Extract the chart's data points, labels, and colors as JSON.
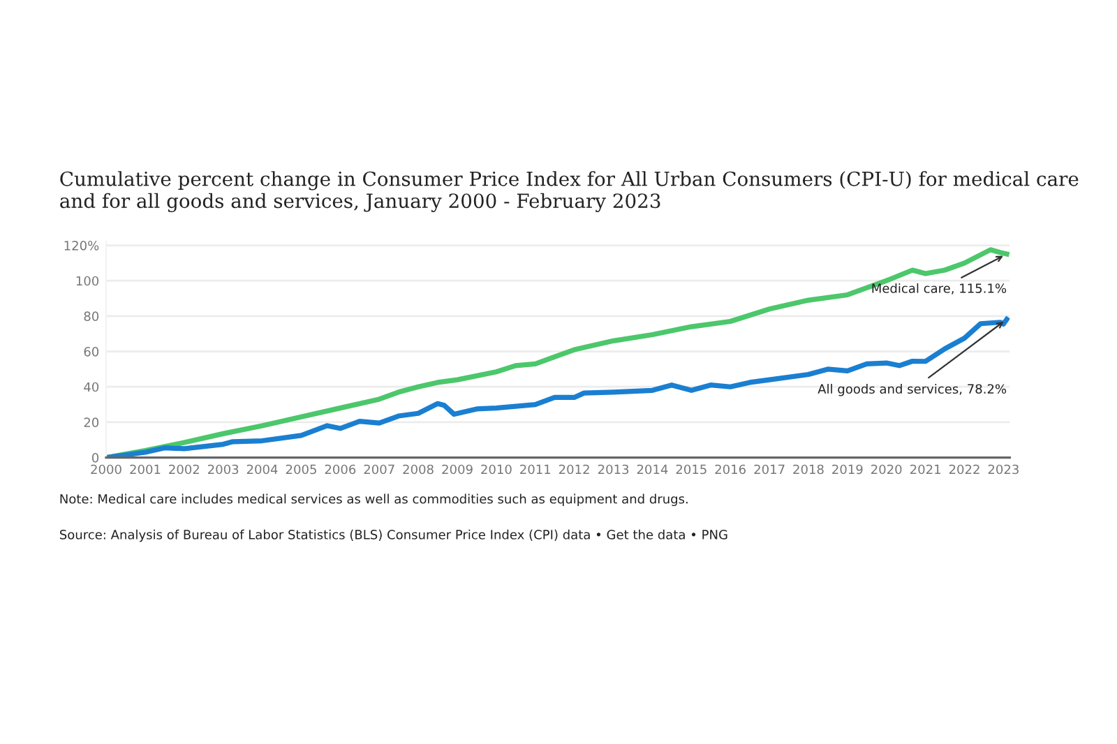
{
  "chart_data": {
    "type": "line",
    "title": "Cumulative percent change in Consumer Price Index for All Urban Consumers (CPI-U) for medical care and for all goods and services, January 2000 - February 2023",
    "series": [
      {
        "color": "#4cc76b",
        "x": [
          "2000-01",
          "2001-01",
          "2002-01",
          "2003-01",
          "2004-01",
          "2005-01",
          "2006-01",
          "2007-01",
          "2007-07",
          "2008-01",
          "2008-07",
          "2009-01",
          "2010-01",
          "2010-07",
          "2011-01",
          "2012-01",
          "2013-01",
          "2014-01",
          "2015-01",
          "2016-01",
          "2017-01",
          "2018-01",
          "2019-01",
          "2020-01",
          "2020-09",
          "2021-01",
          "2021-07",
          "2022-01",
          "2022-09",
          "2022-12",
          "2023-02"
        ],
        "values": [
          0,
          4,
          8.5,
          13.5,
          18,
          23,
          28,
          33,
          37,
          40,
          42.5,
          44,
          48.5,
          52,
          53,
          61,
          66,
          69.5,
          74,
          77,
          84,
          89,
          92,
          100,
          106,
          104,
          106,
          110,
          117.5,
          116,
          115.1
        ]
      },
      {
        "color": "#1a7fd1",
        "x": [
          "2000-01",
          "2001-01",
          "2001-07",
          "2002-01",
          "2003-01",
          "2003-04",
          "2004-01",
          "2005-01",
          "2005-09",
          "2006-01",
          "2006-07",
          "2007-01",
          "2007-07",
          "2008-01",
          "2008-07",
          "2008-09",
          "2008-12",
          "2009-07",
          "2010-01",
          "2011-01",
          "2011-07",
          "2012-01",
          "2012-04",
          "2013-01",
          "2014-01",
          "2014-07",
          "2015-01",
          "2015-07",
          "2016-01",
          "2016-07",
          "2017-01",
          "2018-01",
          "2018-07",
          "2019-01",
          "2019-07",
          "2020-01",
          "2020-05",
          "2020-09",
          "2021-01",
          "2021-07",
          "2022-01",
          "2022-06",
          "2022-12",
          "2023-01",
          "2023-02"
        ],
        "values": [
          0,
          3,
          5.5,
          5,
          7.5,
          9,
          9.5,
          12.5,
          18,
          16.5,
          20.5,
          19.5,
          23.5,
          25,
          30.5,
          29.5,
          24.5,
          27.5,
          28,
          30,
          34,
          34,
          36.5,
          37,
          38,
          41,
          38,
          41,
          40,
          42.5,
          44,
          47,
          50,
          49,
          53,
          53.5,
          52,
          54.5,
          54.4,
          61.5,
          67.5,
          75.7,
          76.5,
          75.5,
          78.2
        ]
      }
    ],
    "xlim": [
      "2000-01",
      "2023-03"
    ],
    "xticks": [
      "2000",
      "2001",
      "2002",
      "2003",
      "2004",
      "2005",
      "2006",
      "2007",
      "2008",
      "2009",
      "2010",
      "2011",
      "2012",
      "2013",
      "2014",
      "2015",
      "2016",
      "2017",
      "2018",
      "2019",
      "2020",
      "2021",
      "2022",
      "2023"
    ],
    "ylim": [
      0,
      122
    ],
    "yticks": [
      0,
      20,
      40,
      60,
      80,
      {
        "value": 120,
        "label": "120%"
      },
      100
    ],
    "grid": "y",
    "legend": false,
    "marker": "none",
    "line_style": "solid",
    "annotations": [
      {
        "text": "Medical care, 115.1%",
        "x": "2023-02",
        "y": 115.1
      },
      {
        "text": "All goods and services, 78.2%",
        "x": "2023-02",
        "y": 78.2
      },
      "Note: Medical care includes medical services as well as commodities such as equipment and drugs.",
      "Source: Analysis of Bureau of Labor Statistics (BLS) Consumer Price Index (CPI) data • Get the data • PNG"
    ]
  }
}
